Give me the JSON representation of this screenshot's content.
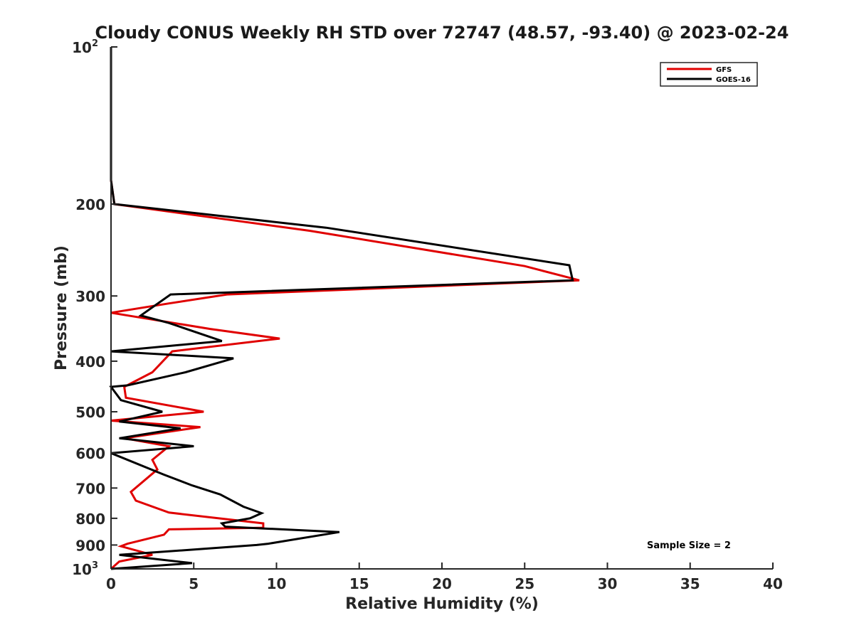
{
  "chart_data": {
    "type": "line",
    "title": "Cloudy CONUS Weekly RH STD over 72747 (48.57, -93.40) @ 2023-02-24",
    "xlabel": "Relative Humidity (%)",
    "ylabel": "Pressure (mb)",
    "xlim": [
      0,
      40
    ],
    "ylim": [
      100,
      1000
    ],
    "yscale": "log",
    "yreversed": true,
    "grid": false,
    "legend_position": "top-right",
    "x_ticks": [
      "0",
      "5",
      "10",
      "15",
      "20",
      "25",
      "30",
      "35",
      "40"
    ],
    "x_tick_values": [
      0,
      5,
      10,
      15,
      20,
      25,
      30,
      35,
      40
    ],
    "y_ticks": [
      {
        "value": 100,
        "base": "10",
        "exp": "2"
      },
      {
        "value": 200,
        "base": "200",
        "exp": ""
      },
      {
        "value": 300,
        "base": "300",
        "exp": ""
      },
      {
        "value": 400,
        "base": "400",
        "exp": ""
      },
      {
        "value": 500,
        "base": "500",
        "exp": ""
      },
      {
        "value": 600,
        "base": "600",
        "exp": ""
      },
      {
        "value": 700,
        "base": "700",
        "exp": ""
      },
      {
        "value": 800,
        "base": "800",
        "exp": ""
      },
      {
        "value": 900,
        "base": "900",
        "exp": ""
      },
      {
        "value": 1000,
        "base": "10",
        "exp": "3"
      }
    ],
    "annotation": "Sample Size = 2",
    "series": [
      {
        "name": "GFS",
        "color": "#e00000",
        "points": [
          [
            0.0,
            100
          ],
          [
            0.0,
            180
          ],
          [
            0.2,
            200
          ],
          [
            12.0,
            225
          ],
          [
            25.0,
            263
          ],
          [
            28.3,
            280
          ],
          [
            7.0,
            298
          ],
          [
            3.5,
            310
          ],
          [
            0.0,
            323
          ],
          [
            6.0,
            347
          ],
          [
            10.2,
            362
          ],
          [
            3.7,
            383
          ],
          [
            2.5,
            420
          ],
          [
            0.8,
            448
          ],
          [
            0.9,
            470
          ],
          [
            5.6,
            500
          ],
          [
            0.0,
            520
          ],
          [
            5.4,
            535
          ],
          [
            0.8,
            562
          ],
          [
            3.5,
            582
          ],
          [
            2.5,
            618
          ],
          [
            2.8,
            645
          ],
          [
            1.2,
            712
          ],
          [
            1.5,
            740
          ],
          [
            3.5,
            780
          ],
          [
            9.2,
            818
          ],
          [
            9.2,
            834
          ],
          [
            3.5,
            840
          ],
          [
            3.2,
            860
          ],
          [
            1.0,
            895
          ],
          [
            0.6,
            905
          ],
          [
            2.5,
            940
          ],
          [
            0.5,
            968
          ],
          [
            0.0,
            1000
          ]
        ]
      },
      {
        "name": "GOES-16",
        "color": "#000000",
        "points": [
          [
            0.0,
            100
          ],
          [
            0.0,
            180
          ],
          [
            0.2,
            200
          ],
          [
            13.0,
            222
          ],
          [
            27.7,
            262
          ],
          [
            27.9,
            280
          ],
          [
            3.6,
            298
          ],
          [
            1.8,
            327
          ],
          [
            3.5,
            338
          ],
          [
            6.7,
            366
          ],
          [
            0.0,
            383
          ],
          [
            7.4,
            395
          ],
          [
            4.5,
            420
          ],
          [
            1.0,
            445
          ],
          [
            0.0,
            448
          ],
          [
            0.6,
            475
          ],
          [
            3.1,
            500
          ],
          [
            0.5,
            522
          ],
          [
            4.2,
            538
          ],
          [
            0.5,
            562
          ],
          [
            5.0,
            582
          ],
          [
            0.0,
            600
          ],
          [
            3.2,
            660
          ],
          [
            4.9,
            692
          ],
          [
            6.6,
            720
          ],
          [
            8.0,
            760
          ],
          [
            9.1,
            782
          ],
          [
            8.4,
            800
          ],
          [
            6.7,
            818
          ],
          [
            6.9,
            830
          ],
          [
            13.8,
            850
          ],
          [
            9.5,
            895
          ],
          [
            8.8,
            900
          ],
          [
            0.5,
            940
          ],
          [
            4.9,
            975
          ],
          [
            0.0,
            1000
          ]
        ]
      }
    ]
  }
}
